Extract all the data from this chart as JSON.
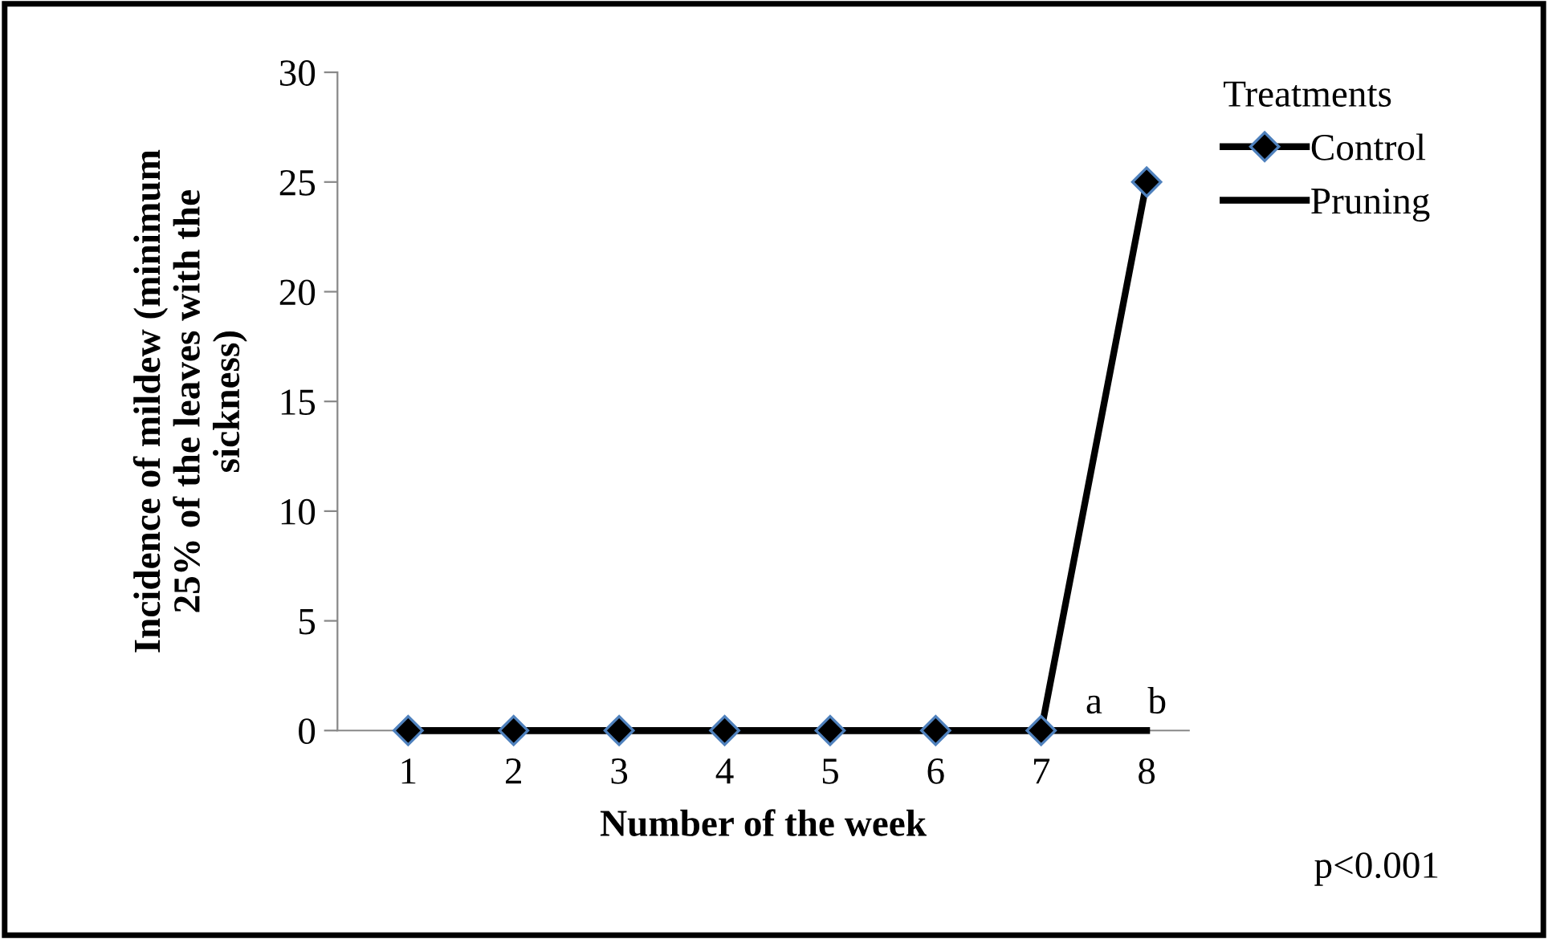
{
  "chart_data": {
    "type": "line",
    "xlabel": "Number of the week",
    "ylabel": "Incidence of mildew (minimum\n25% of the leaves with the\nsickness)",
    "legend_title": "Treatments",
    "categories": [
      "1",
      "2",
      "3",
      "4",
      "5",
      "6",
      "7",
      "8"
    ],
    "series": [
      {
        "name": "Control",
        "color": "#000000",
        "marker": "diamond",
        "values": [
          0,
          0,
          0,
          0,
          0,
          0,
          0,
          25
        ]
      },
      {
        "name": "Pruning",
        "color": "#000000",
        "marker": "none",
        "values": [
          0,
          0,
          0,
          0,
          0,
          0,
          0,
          0
        ]
      }
    ],
    "ylim": [
      0,
      30
    ],
    "yticks": [
      0,
      5,
      10,
      15,
      20,
      25,
      30
    ],
    "grid": false,
    "legend": "top right",
    "line_style": "solid",
    "annotations": [
      "a",
      "b",
      "p<0.001"
    ]
  }
}
